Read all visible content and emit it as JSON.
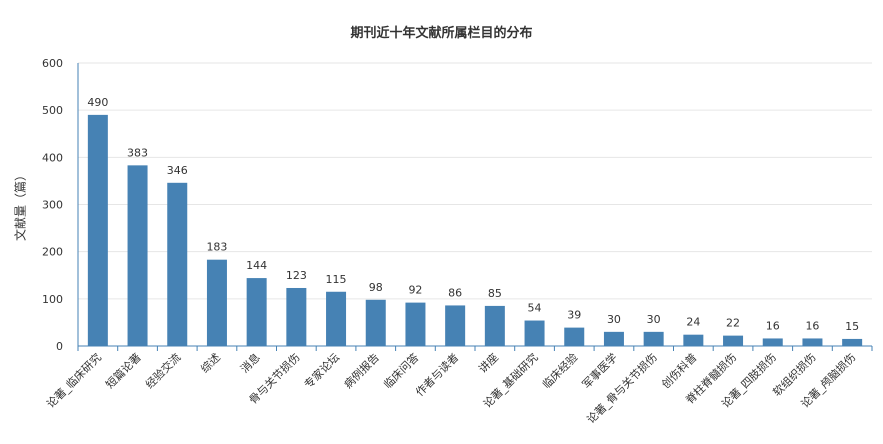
{
  "chart_data": {
    "type": "bar",
    "title": "期刊近十年文献所属栏目的分布",
    "xlabel": "",
    "ylabel": "文献量（篇）",
    "ylim": [
      0,
      600
    ],
    "yticks": [
      0,
      100,
      200,
      300,
      400,
      500,
      600
    ],
    "grid": true,
    "bar_color": "#4682b4",
    "categories": [
      "论著_临床研究",
      "短篇论著",
      "经验交流",
      "综述",
      "消息",
      "骨与关节损伤",
      "专家论坛",
      "病例报告",
      "临床问答",
      "作者与读者",
      "讲座",
      "论著_基础研究",
      "临床经验",
      "军事医学",
      "论著_骨与关节损伤",
      "创伤科普",
      "脊柱脊髓损伤",
      "论著_四肢损伤",
      "软组织损伤",
      "论著_颅脑损伤"
    ],
    "values": [
      490,
      383,
      346,
      183,
      144,
      123,
      115,
      98,
      92,
      86,
      85,
      54,
      39,
      30,
      30,
      24,
      22,
      16,
      16,
      15
    ]
  }
}
